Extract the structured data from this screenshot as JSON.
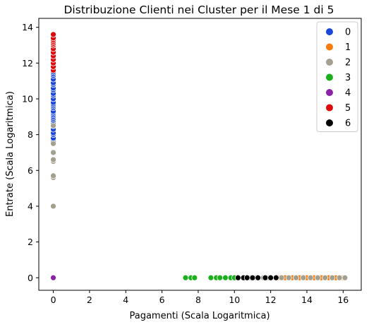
{
  "chart_data": {
    "type": "scatter",
    "title": "Distribuzione Clienti nei Cluster per il Mese 1 di 5",
    "xlabel": "Pagamenti (Scala Logaritmica)",
    "ylabel": "Entrate (Scala Logaritmica)",
    "xlim": [
      -0.8,
      17.0
    ],
    "ylim": [
      -0.7,
      14.5
    ],
    "xticks": [
      0,
      2,
      4,
      6,
      8,
      10,
      12,
      14,
      16
    ],
    "yticks": [
      0,
      2,
      4,
      6,
      8,
      10,
      12,
      14
    ],
    "grid": false,
    "legend_position": "upper-right",
    "series": [
      {
        "name": "0",
        "color": "#1a47d8",
        "x": [
          0,
          0,
          0,
          0,
          0,
          0,
          0,
          0,
          0,
          0,
          0,
          0,
          0,
          0,
          0,
          0,
          0,
          0,
          0,
          0,
          0,
          0,
          0,
          0,
          0,
          0,
          0,
          0,
          0
        ],
        "y": [
          7.5,
          7.6,
          7.8,
          8.0,
          8.1,
          8.3,
          8.5,
          8.6,
          8.8,
          8.9,
          9.0,
          9.1,
          9.2,
          9.3,
          9.5,
          9.6,
          9.7,
          9.8,
          10.0,
          10.2,
          10.3,
          10.5,
          10.6,
          10.8,
          10.9,
          11.1,
          11.3,
          11.4,
          11.5
        ]
      },
      {
        "name": "1",
        "color": "#f97b0c",
        "x": [
          12.4,
          12.6,
          12.8,
          13.0,
          13.2,
          13.4,
          13.6,
          13.8,
          14.0,
          14.2,
          14.4,
          14.6,
          14.8,
          15.0,
          15.2,
          15.4,
          15.6,
          15.8,
          16.0,
          16.1
        ],
        "y": [
          0,
          0,
          0,
          0,
          0,
          0,
          0,
          0,
          0,
          0,
          0,
          0,
          0,
          0,
          0,
          0,
          0,
          0,
          0,
          0
        ]
      },
      {
        "name": "2",
        "color": "#a3a08f",
        "x": [
          0,
          0,
          0,
          0,
          0,
          0,
          0,
          0,
          10.5,
          10.9,
          11.2,
          11.6,
          11.9,
          12.3,
          12.6,
          13.0,
          13.4,
          13.8,
          14.2,
          14.6,
          15.0,
          15.4,
          15.8,
          16.1
        ],
        "y": [
          4.0,
          5.6,
          5.7,
          6.5,
          6.6,
          7.0,
          7.5,
          8.5,
          0,
          0,
          0,
          0,
          0,
          0,
          0,
          0,
          0,
          0,
          0,
          0,
          0,
          0,
          0,
          0
        ]
      },
      {
        "name": "3",
        "color": "#1caf1c",
        "x": [
          7.3,
          7.6,
          7.8,
          8.7,
          9.0,
          9.2,
          9.5,
          9.8,
          10.0
        ],
        "y": [
          0,
          0,
          0,
          0,
          0,
          0,
          0,
          0,
          0
        ]
      },
      {
        "name": "4",
        "color": "#8c22a8",
        "x": [
          0
        ],
        "y": [
          0
        ]
      },
      {
        "name": "5",
        "color": "#dd0b0b",
        "x": [
          0,
          0,
          0,
          0,
          0,
          0,
          0,
          0,
          0,
          0,
          0,
          0,
          0
        ],
        "y": [
          11.6,
          11.8,
          12.0,
          12.2,
          12.4,
          12.6,
          12.8,
          13.0,
          13.1,
          13.2,
          13.3,
          13.4,
          13.6
        ]
      },
      {
        "name": "6",
        "color": "#000000",
        "x": [
          10.2,
          10.5,
          10.7,
          11.0,
          11.3,
          11.7,
          12.0,
          12.3
        ],
        "y": [
          0,
          0,
          0,
          0,
          0,
          0,
          0,
          0
        ]
      }
    ]
  }
}
